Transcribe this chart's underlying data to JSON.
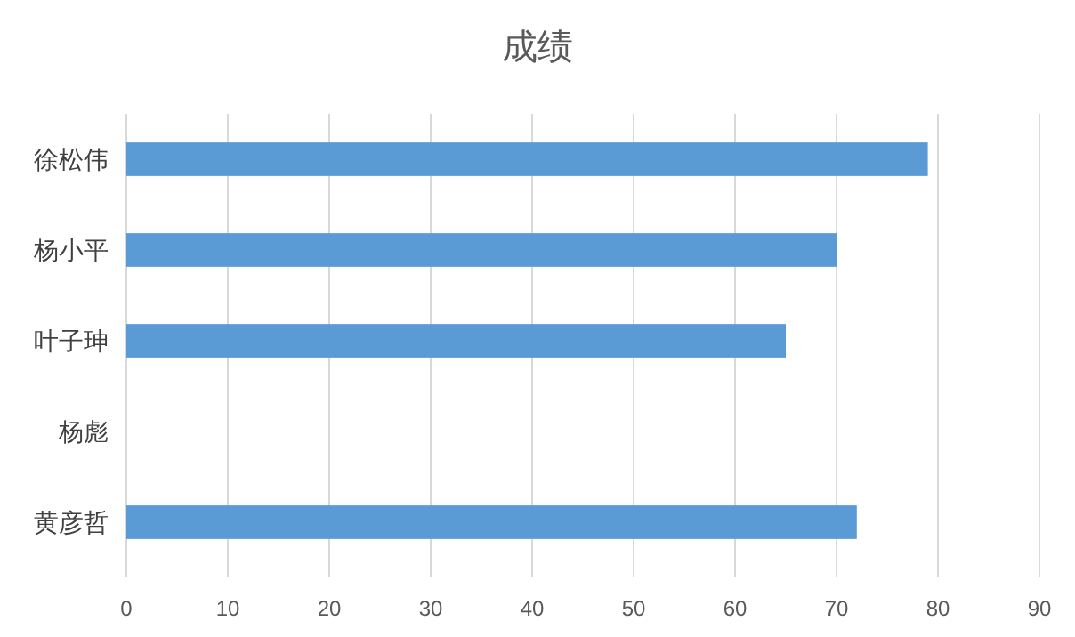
{
  "chart_data": {
    "type": "bar",
    "orientation": "horizontal",
    "title": "成绩",
    "categories": [
      "徐松伟",
      "杨小平",
      "叶子珅",
      "杨彪",
      "黄彦哲"
    ],
    "values": [
      79,
      70,
      65,
      null,
      72
    ],
    "color": "#5b9bd5",
    "xlim": [
      0,
      90
    ],
    "xticks": [
      0,
      10,
      20,
      30,
      40,
      50,
      60,
      70,
      80,
      90
    ],
    "grid": "x"
  }
}
